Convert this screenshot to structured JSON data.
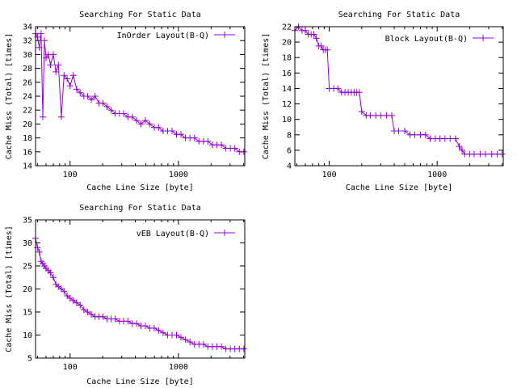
{
  "chart_data": [
    {
      "type": "line",
      "title": "Searching For Static Data",
      "xlabel": "Cache Line Size [byte]",
      "ylabel": "Cache Miss (Total) [times]",
      "xscale": "log",
      "xlim": [
        48,
        4096
      ],
      "ylim": [
        14,
        34
      ],
      "xticks": [
        100,
        1000
      ],
      "xtick_labels": [
        "100",
        "1000"
      ],
      "yticks": [
        14,
        16,
        18,
        20,
        22,
        24,
        26,
        28,
        30,
        32,
        34
      ],
      "ytick_labels": [
        "14",
        "16",
        "18",
        "20",
        "22",
        "24",
        "26",
        "28",
        "30",
        "32",
        "34"
      ],
      "legend_position": "top-right",
      "series": [
        {
          "name": "InOrder Layout(B-Q)",
          "color": "#9400d3",
          "x": [
            48,
            50,
            52,
            54,
            56,
            58,
            60,
            63,
            66,
            70,
            74,
            78,
            83,
            88,
            94,
            100,
            107,
            115,
            124,
            134,
            145,
            157,
            170,
            185,
            201,
            219,
            239,
            261,
            285,
            312,
            342,
            375,
            411,
            451,
            495,
            544,
            598,
            657,
            722,
            794,
            873,
            960,
            1056,
            1162,
            1278,
            1406,
            1547,
            1702,
            1872,
            2059,
            2265,
            2492,
            2741,
            3015,
            3317,
            3649,
            4014
          ],
          "y": [
            33,
            32.5,
            31,
            33,
            21,
            32,
            29.5,
            30,
            28.5,
            30,
            27.5,
            28.5,
            21,
            27,
            26.5,
            25.5,
            27,
            25,
            24.5,
            24,
            24,
            23.5,
            24,
            23,
            23,
            22.5,
            22,
            21.5,
            21.5,
            21.5,
            21,
            21,
            20.5,
            20,
            20.5,
            20,
            19.5,
            19.5,
            19,
            19,
            19,
            18.5,
            18.5,
            18,
            18,
            18,
            17.5,
            17.5,
            17.5,
            17,
            17,
            17,
            16.5,
            16.5,
            16.5,
            16,
            16
          ]
        }
      ]
    },
    {
      "type": "line",
      "title": "Searching For Static Data",
      "xlabel": "Cache Line Size [byte]",
      "ylabel": "Cache Miss (Total) [times]",
      "xscale": "log",
      "xlim": [
        48,
        4096
      ],
      "ylim": [
        4,
        22
      ],
      "xticks": [
        100,
        1000
      ],
      "xtick_labels": [
        "100",
        "1000"
      ],
      "yticks": [
        4,
        6,
        8,
        10,
        12,
        14,
        16,
        18,
        20,
        22
      ],
      "ytick_labels": [
        "4",
        "6",
        "8",
        "10",
        "12",
        "14",
        "16",
        "18",
        "20",
        "22"
      ],
      "legend_position": "top-right",
      "series": [
        {
          "name": "Block Layout(B-Q)",
          "color": "#9400d3",
          "x": [
            48,
            52,
            56,
            60,
            64,
            68,
            72,
            76,
            80,
            84,
            88,
            92,
            96,
            100,
            110,
            120,
            130,
            140,
            150,
            160,
            170,
            180,
            190,
            200,
            220,
            240,
            270,
            300,
            340,
            380,
            400,
            440,
            500,
            560,
            620,
            700,
            780,
            860,
            960,
            1060,
            1180,
            1320,
            1480,
            1600,
            1700,
            1800,
            2000,
            2200,
            2500,
            2800,
            3200,
            3600,
            4000
          ],
          "y": [
            21.5,
            22,
            21.5,
            21.5,
            21,
            21,
            21,
            20.5,
            19.5,
            19.5,
            19,
            19,
            19,
            14,
            14,
            14,
            13.5,
            13.5,
            13.5,
            13.5,
            13.5,
            13.5,
            13.5,
            11,
            10.5,
            10.5,
            10.5,
            10.5,
            10.5,
            10.5,
            8.5,
            8.5,
            8.5,
            8,
            8,
            8,
            8,
            7.5,
            7.5,
            7.5,
            7.5,
            7.5,
            7.5,
            6.5,
            6,
            5.5,
            5.5,
            5.5,
            5.5,
            5.5,
            5.5,
            5.5,
            5.5
          ]
        }
      ]
    },
    {
      "type": "line",
      "title": "Searching For Static Data",
      "xlabel": "Cache Line Size [byte]",
      "ylabel": "Cache Miss (Total) [times]",
      "xscale": "log",
      "xlim": [
        48,
        4096
      ],
      "ylim": [
        5,
        35
      ],
      "xticks": [
        100,
        1000
      ],
      "xtick_labels": [
        "100",
        "1000"
      ],
      "yticks": [
        5,
        10,
        15,
        20,
        25,
        30,
        35
      ],
      "ytick_labels": [
        "5",
        "10",
        "15",
        "20",
        "25",
        "30",
        "35"
      ],
      "legend_position": "top-right",
      "series": [
        {
          "name": "vEB Layout(B-Q)",
          "color": "#9400d3",
          "x": [
            48,
            50,
            52,
            54,
            56,
            58,
            60,
            63,
            66,
            70,
            74,
            78,
            83,
            88,
            94,
            100,
            107,
            115,
            124,
            134,
            145,
            157,
            170,
            185,
            201,
            219,
            239,
            261,
            285,
            312,
            342,
            375,
            411,
            451,
            495,
            544,
            598,
            657,
            722,
            794,
            873,
            960,
            1056,
            1162,
            1278,
            1406,
            1547,
            1702,
            1872,
            2059,
            2265,
            2492,
            2741,
            3015,
            3317,
            3649,
            4014
          ],
          "y": [
            31,
            29,
            28,
            26,
            25.5,
            25,
            24.5,
            24,
            23.5,
            22.5,
            21,
            20.5,
            20,
            19.5,
            18.5,
            18,
            17.5,
            17,
            16.5,
            15.5,
            15,
            14.5,
            14,
            14,
            14,
            13.5,
            13.5,
            13.5,
            13,
            13,
            13,
            12.5,
            12.5,
            12,
            12,
            11.5,
            11.5,
            11,
            10.5,
            10,
            10,
            10,
            9.5,
            9,
            8.5,
            8,
            8,
            8,
            7.5,
            7.5,
            7.5,
            7.5,
            7,
            7,
            7,
            7,
            7
          ]
        }
      ]
    }
  ]
}
